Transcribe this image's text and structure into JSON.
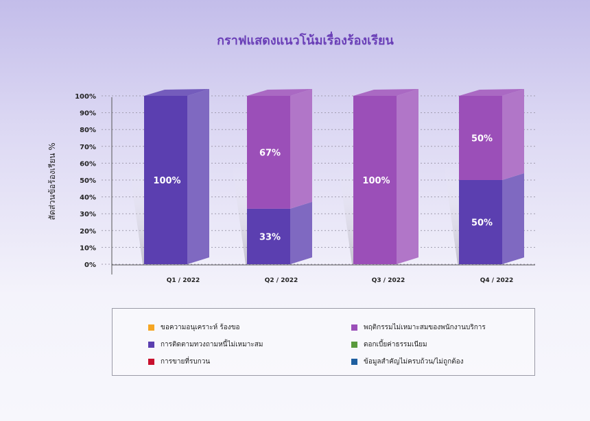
{
  "chart_data": {
    "type": "bar",
    "stacked": true,
    "style": "3d",
    "title": "กราฟแสดงแนวโน้มเรื่องร้องเรียน",
    "ylabel": "สัดส่วนข้อร้องเรียน %",
    "xlabel": "",
    "ylim": [
      0,
      100
    ],
    "yticks": [
      "0%",
      "10%",
      "20%",
      "30%",
      "40%",
      "50%",
      "60%",
      "70%",
      "80%",
      "90%",
      "100%"
    ],
    "grid": true,
    "categories": [
      "Q1 / 2022",
      "Q2 / 2022",
      "Q3 / 2022",
      "Q4 / 2022"
    ],
    "series": [
      {
        "name": "ขอความอนุเคราะห์ ร้องขอ",
        "color": "#f5a623",
        "values": [
          0,
          0,
          0,
          0
        ],
        "labels": [
          "",
          "",
          "",
          ""
        ]
      },
      {
        "name": "พฤติกรรมไม่เหมาะสมของพนักงานบริการ",
        "color": "#9b4fb8",
        "values": [
          0,
          67,
          100,
          50
        ],
        "labels": [
          "",
          "67%",
          "100%",
          "50%"
        ]
      },
      {
        "name": "การติดตามทวงถามหนี้ไม่เหมาะสม",
        "color": "#5b3fb0",
        "values": [
          100,
          33,
          0,
          50
        ],
        "labels": [
          "100%",
          "33%",
          "",
          "50%"
        ]
      },
      {
        "name": "ดอกเบี้ยค่าธรรมเนียม",
        "color": "#5a9a3c",
        "values": [
          0,
          0,
          0,
          0
        ],
        "labels": [
          "",
          "",
          "",
          ""
        ]
      },
      {
        "name": "การขายที่รบกวน",
        "color": "#c8102e",
        "values": [
          0,
          0,
          0,
          0
        ],
        "labels": [
          "",
          "",
          "",
          ""
        ]
      },
      {
        "name": "ข้อมูลสำคัญไม่ครบถ้วน/ไม่ถูกต้อง",
        "color": "#1f5fa0",
        "values": [
          0,
          0,
          0,
          0
        ],
        "labels": [
          "",
          "",
          "",
          ""
        ]
      }
    ],
    "stack_order": [
      2,
      1
    ],
    "legend_position": "bottom"
  }
}
